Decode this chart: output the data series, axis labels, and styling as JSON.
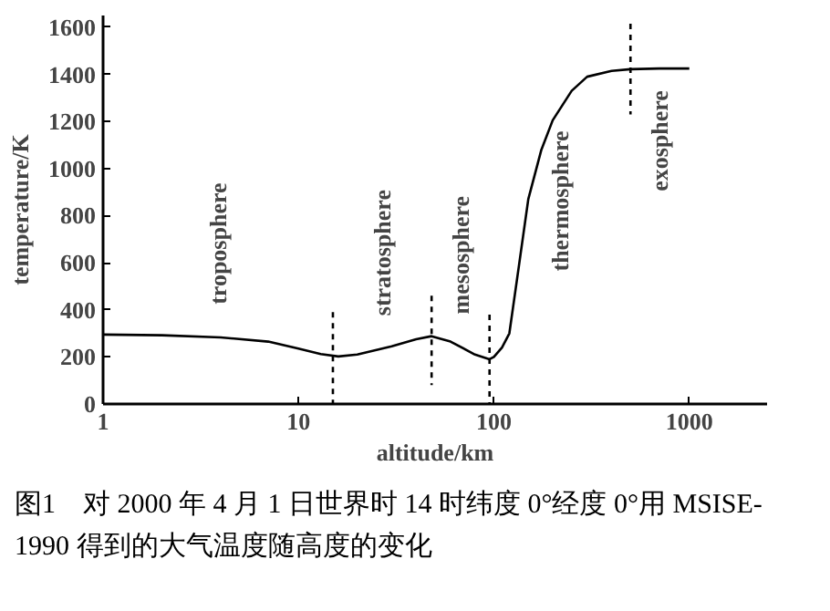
{
  "chart_data": {
    "type": "line",
    "xlabel": "altitude/km",
    "ylabel": "temperature/K",
    "log": "x",
    "xlim": [
      1,
      2500
    ],
    "ylim": [
      0,
      1650
    ],
    "xticks": [
      1,
      10,
      100,
      1000
    ],
    "yticks": [
      0,
      200,
      400,
      600,
      800,
      1000,
      1200,
      1400,
      1600
    ],
    "grid": false,
    "marker": "none",
    "series": [
      {
        "color": "#000000",
        "line_style": "solid",
        "x": [
          1,
          2,
          4,
          7,
          10,
          13,
          16,
          20,
          30,
          40,
          48,
          60,
          80,
          95,
          100,
          110,
          120,
          135,
          150,
          175,
          200,
          250,
          300,
          400,
          500,
          700,
          1000
        ],
        "values": [
          295,
          292,
          283,
          265,
          235,
          212,
          202,
          210,
          245,
          275,
          288,
          265,
          210,
          190,
          200,
          240,
          300,
          600,
          870,
          1080,
          1205,
          1330,
          1390,
          1415,
          1422,
          1425,
          1425
        ]
      },
      {
        "color": "#000000",
        "line_style": "dashed",
        "x": [
          15,
          15
        ],
        "values": [
          390,
          0
        ]
      },
      {
        "color": "#000000",
        "line_style": "dashed",
        "x": [
          48,
          48
        ],
        "values": [
          460,
          80
        ]
      },
      {
        "color": "#000000",
        "line_style": "dashed",
        "x": [
          95,
          95
        ],
        "values": [
          380,
          0
        ]
      },
      {
        "color": "#000000",
        "line_style": "dashed",
        "x": [
          500,
          500
        ],
        "values": [
          1615,
          1230
        ]
      }
    ],
    "annotations": [
      "troposphere",
      "stratosphere",
      "mesosphere",
      "thermosphere",
      "exosphere",
      "图1　对 2000 年 4 月 1 日世界时 14 时纬度 0°经度 0°用 MSISE-1990 得到的大气温度随高度的变化"
    ]
  }
}
